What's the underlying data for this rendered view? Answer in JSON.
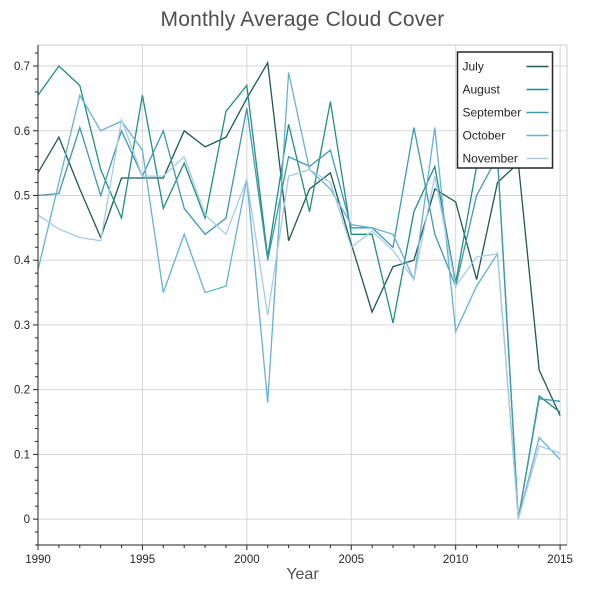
{
  "title": "Monthly Average Cloud Cover",
  "x_axis": {
    "label": "Year",
    "tick_labels": [
      "1990",
      "1995",
      "2000",
      "2005",
      "2010",
      "2015"
    ],
    "major_ticks": [
      1990,
      1995,
      2000,
      2005,
      2010,
      2015
    ],
    "minor_step": 1,
    "min": 1990,
    "max": 2015.33
  },
  "y_axis": {
    "tick_labels": [
      "0",
      "0.1",
      "0.2",
      "0.3",
      "0.4",
      "0.5",
      "0.6",
      "0.7"
    ],
    "major_ticks": [
      0,
      0.1,
      0.2,
      0.3,
      0.4,
      0.5,
      0.6,
      0.7
    ],
    "minor_step": 0.02,
    "min": -0.04,
    "max": 0.7325
  },
  "legend": {
    "position": "upper-right",
    "entries": [
      "July",
      "August",
      "September",
      "October",
      "November"
    ]
  },
  "style": {
    "grid_color": "#d6d6d6",
    "spine_color_dark": "#262626",
    "spine_color_light": "#cccccc",
    "tick_label_color": "#262626",
    "title_color": "#4f4f4f",
    "background": "#ffffff"
  },
  "chart_data": {
    "type": "line",
    "title": "Monthly Average Cloud Cover",
    "xlabel": "Year",
    "ylabel": "",
    "grid": true,
    "legend_position": "upper right",
    "xlim": [
      1990,
      2015.33
    ],
    "ylim": [
      -0.04,
      0.7325
    ],
    "x": [
      1990,
      1991,
      1992,
      1993,
      1994,
      1995,
      1996,
      1997,
      1998,
      1999,
      2000,
      2001,
      2002,
      2003,
      2004,
      2005,
      2006,
      2007,
      2008,
      2009,
      2010,
      2011,
      2012,
      2013,
      2014,
      2015
    ],
    "series": [
      {
        "name": "July",
        "color": "#1d5b4f",
        "values": [
          0.535,
          0.59,
          0.51,
          0.435,
          0.527,
          0.527,
          0.527,
          0.6,
          0.575,
          0.59,
          0.65,
          0.705,
          0.43,
          0.51,
          0.535,
          0.425,
          0.32,
          0.39,
          0.4,
          0.51,
          0.49,
          0.37,
          0.52,
          0.55,
          0.23,
          0.16
        ]
      },
      {
        "name": "August",
        "color": "#1f8f85",
        "values": [
          0.655,
          0.7,
          0.67,
          0.54,
          0.465,
          0.655,
          0.48,
          0.55,
          0.465,
          0.63,
          0.67,
          0.405,
          0.61,
          0.475,
          0.645,
          0.44,
          0.44,
          0.303,
          0.475,
          0.545,
          0.365,
          0.545,
          0.56,
          0.0,
          0.19,
          0.165
        ]
      },
      {
        "name": "September",
        "color": "#3f99ad",
        "values": [
          0.5,
          0.503,
          0.605,
          0.5,
          0.6,
          0.53,
          0.6,
          0.48,
          0.44,
          0.465,
          0.635,
          0.4,
          0.56,
          0.545,
          0.57,
          0.45,
          0.45,
          0.42,
          0.605,
          0.44,
          0.36,
          0.5,
          0.56,
          0.0,
          0.186,
          0.182
        ]
      },
      {
        "name": "October",
        "color": "#67b1d5",
        "values": [
          0.385,
          0.52,
          0.655,
          0.6,
          0.615,
          0.57,
          0.35,
          0.44,
          0.35,
          0.36,
          0.525,
          0.18,
          0.69,
          0.54,
          0.51,
          0.455,
          0.45,
          0.44,
          0.37,
          0.605,
          0.29,
          0.36,
          0.41,
          0.0,
          0.126,
          0.092
        ]
      },
      {
        "name": "November",
        "color": "#a6cbe4",
        "values": [
          0.47,
          0.448,
          0.435,
          0.43,
          0.617,
          0.53,
          0.53,
          0.56,
          0.47,
          0.44,
          0.525,
          0.315,
          0.53,
          0.54,
          0.52,
          0.42,
          0.445,
          0.415,
          0.37,
          0.53,
          0.36,
          0.405,
          0.41,
          0.0,
          0.113,
          0.102
        ]
      }
    ]
  }
}
